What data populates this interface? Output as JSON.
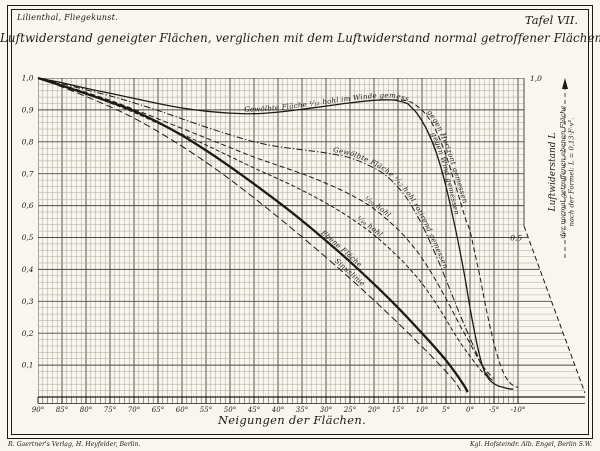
{
  "plate": {
    "work_title": "Lilienthal, Fliegekunst.",
    "plate_number": "Tafel VII.",
    "footer_left": "R. Gaertner's Verlag, H. Heyfelder, Berlin.",
    "footer_right": "Kgl. Hofsteindr. Alb. Engel, Berlin S.W."
  },
  "colors": {
    "ink": "#1c1a15",
    "paper": "#f8f6ef",
    "grid_fine": "#a49e92",
    "grid_major": "#4e4a42"
  },
  "chart_data": {
    "type": "line",
    "title": "Luftwiderstand geneigter Flächen, verglichen mit dem Luftwiderstand normal getroffener Flächen.",
    "xlabel": "Neigungen der Flächen.",
    "ylabel_right_lines": [
      "Luftwiderstand L",
      "der normal getroffenen ebenen Fläche",
      "nach der Formel: L = 0,13·F·v²."
    ],
    "xlim": [
      90,
      -10
    ],
    "ylim": [
      0,
      1
    ],
    "grid": true,
    "x_ticks": [
      {
        "v": 90,
        "label": "90°"
      },
      {
        "v": 85,
        "label": "85°"
      },
      {
        "v": 80,
        "label": "80°"
      },
      {
        "v": 75,
        "label": "75°"
      },
      {
        "v": 70,
        "label": "70°"
      },
      {
        "v": 65,
        "label": "65°"
      },
      {
        "v": 60,
        "label": "60°"
      },
      {
        "v": 55,
        "label": "55°"
      },
      {
        "v": 50,
        "label": "50°"
      },
      {
        "v": 45,
        "label": "45°"
      },
      {
        "v": 40,
        "label": "40°"
      },
      {
        "v": 35,
        "label": "35°"
      },
      {
        "v": 30,
        "label": "30°"
      },
      {
        "v": 25,
        "label": "25°"
      },
      {
        "v": 20,
        "label": "20°"
      },
      {
        "v": 15,
        "label": "15°"
      },
      {
        "v": 10,
        "label": "10°"
      },
      {
        "v": 5,
        "label": "5°"
      },
      {
        "v": 0,
        "label": "0°"
      },
      {
        "v": -5,
        "label": "-5°"
      },
      {
        "v": -10,
        "label": "-10°"
      }
    ],
    "y_ticks_left": [
      {
        "v": 1.0,
        "label": "1,0"
      },
      {
        "v": 0.9,
        "label": "0,9"
      },
      {
        "v": 0.8,
        "label": "0,8"
      },
      {
        "v": 0.7,
        "label": "0,7"
      },
      {
        "v": 0.6,
        "label": "0,6"
      },
      {
        "v": 0.5,
        "label": "0,5"
      },
      {
        "v": 0.4,
        "label": "0,4"
      },
      {
        "v": 0.3,
        "label": "0,3"
      },
      {
        "v": 0.2,
        "label": "0,2"
      },
      {
        "v": 0.1,
        "label": "0,1"
      }
    ],
    "y_ticks_right": [
      {
        "v": 1.0,
        "label": "1,0"
      },
      {
        "v": 0.5,
        "label": "0,5"
      }
    ],
    "series": [
      {
        "id": "im-winde",
        "name": "Gewölbte Fläche ¹⁄₁₂ hohl im Winde gemessen",
        "style": "solid",
        "width": 1.3,
        "label_offset": "56%",
        "points": [
          [
            90,
            1.0
          ],
          [
            85,
            0.985
          ],
          [
            80,
            0.968
          ],
          [
            75,
            0.952
          ],
          [
            70,
            0.936
          ],
          [
            65,
            0.92
          ],
          [
            60,
            0.906
          ],
          [
            55,
            0.896
          ],
          [
            50,
            0.89
          ],
          [
            45,
            0.888
          ],
          [
            40,
            0.893
          ],
          [
            35,
            0.902
          ],
          [
            30,
            0.912
          ],
          [
            25,
            0.922
          ],
          [
            20,
            0.93
          ],
          [
            16,
            0.931
          ],
          [
            13,
            0.92
          ]
        ]
      },
      {
        "id": "gegen-horizont",
        "name": "gegen Horizont gemessen",
        "style": "dashed",
        "width": 1,
        "label_offset": "11%",
        "points": [
          [
            16,
            0.932
          ],
          [
            13,
            0.928
          ],
          [
            11,
            0.912
          ],
          [
            9,
            0.882
          ],
          [
            7,
            0.832
          ],
          [
            5,
            0.758
          ],
          [
            3,
            0.662
          ],
          [
            1,
            0.562
          ],
          [
            0,
            0.52
          ],
          [
            -1,
            0.452
          ],
          [
            -2,
            0.382
          ],
          [
            -3,
            0.305
          ],
          [
            -4,
            0.232
          ],
          [
            -5,
            0.168
          ],
          [
            -6,
            0.115
          ],
          [
            -7,
            0.075
          ],
          [
            -8,
            0.05
          ],
          [
            -9,
            0.036
          ],
          [
            -10,
            0.03
          ]
        ]
      },
      {
        "id": "gegen-wind",
        "name": "gegen Wind gemessen",
        "style": "solid",
        "width": 1.3,
        "label_offset": "12%",
        "points": [
          [
            13,
            0.92
          ],
          [
            11,
            0.888
          ],
          [
            9,
            0.838
          ],
          [
            7,
            0.765
          ],
          [
            5,
            0.66
          ],
          [
            3,
            0.525
          ],
          [
            2,
            0.45
          ],
          [
            1,
            0.37
          ],
          [
            0,
            0.28
          ],
          [
            -1,
            0.2
          ],
          [
            -2,
            0.13
          ],
          [
            -3,
            0.08
          ],
          [
            -4,
            0.055
          ],
          [
            -5,
            0.042
          ],
          [
            -6,
            0.034
          ],
          [
            -7,
            0.03
          ],
          [
            -8,
            0.026
          ],
          [
            -9,
            0.024
          ]
        ]
      },
      {
        "id": "rotirend",
        "name": "Gewölbte Fläche ¹⁄₁₂ hohl rotirend gemessen",
        "style": "dashdot",
        "width": 1,
        "label_offset": "51%",
        "points": [
          [
            90,
            1.0
          ],
          [
            85,
            0.982
          ],
          [
            80,
            0.963
          ],
          [
            75,
            0.944
          ],
          [
            70,
            0.922
          ],
          [
            65,
            0.898
          ],
          [
            60,
            0.872
          ],
          [
            55,
            0.846
          ],
          [
            50,
            0.822
          ],
          [
            45,
            0.8
          ],
          [
            40,
            0.785
          ],
          [
            35,
            0.775
          ],
          [
            30,
            0.765
          ],
          [
            25,
            0.75
          ],
          [
            20,
            0.718
          ],
          [
            17,
            0.688
          ],
          [
            14,
            0.64
          ],
          [
            12,
            0.595
          ],
          [
            10,
            0.54
          ],
          [
            8,
            0.475
          ],
          [
            6,
            0.405
          ],
          [
            4,
            0.33
          ],
          [
            2,
            0.255
          ],
          [
            0,
            0.185
          ],
          [
            -1,
            0.15
          ],
          [
            -2,
            0.115
          ],
          [
            -3,
            0.085
          ],
          [
            -4,
            0.062
          ],
          [
            -5,
            0.048
          ]
        ]
      },
      {
        "id": "hohl-1-20",
        "name": "¹⁄₂₀ hohl",
        "style": "dashed",
        "width": 1,
        "label_offset": "61%",
        "points": [
          [
            90,
            1.0
          ],
          [
            85,
            0.978
          ],
          [
            80,
            0.955
          ],
          [
            75,
            0.93
          ],
          [
            70,
            0.902
          ],
          [
            65,
            0.872
          ],
          [
            60,
            0.842
          ],
          [
            55,
            0.812
          ],
          [
            50,
            0.782
          ],
          [
            45,
            0.752
          ],
          [
            40,
            0.726
          ],
          [
            35,
            0.7
          ],
          [
            30,
            0.67
          ],
          [
            25,
            0.635
          ],
          [
            20,
            0.59
          ],
          [
            15,
            0.525
          ],
          [
            12,
            0.475
          ],
          [
            10,
            0.435
          ],
          [
            8,
            0.388
          ],
          [
            6,
            0.336
          ],
          [
            4,
            0.28
          ],
          [
            2,
            0.222
          ],
          [
            0,
            0.168
          ],
          [
            -2,
            0.112
          ],
          [
            -3,
            0.09
          ],
          [
            -4,
            0.072
          ],
          [
            -5,
            0.058
          ]
        ]
      },
      {
        "id": "hohl-1-40",
        "name": "¹⁄₄₀ hohl",
        "style": "finedash",
        "width": 1,
        "label_offset": "62%",
        "points": [
          [
            90,
            1.0
          ],
          [
            85,
            0.976
          ],
          [
            80,
            0.95
          ],
          [
            75,
            0.922
          ],
          [
            70,
            0.892
          ],
          [
            65,
            0.858
          ],
          [
            60,
            0.824
          ],
          [
            55,
            0.79
          ],
          [
            50,
            0.754
          ],
          [
            45,
            0.718
          ],
          [
            40,
            0.684
          ],
          [
            35,
            0.648
          ],
          [
            30,
            0.608
          ],
          [
            25,
            0.562
          ],
          [
            20,
            0.508
          ],
          [
            15,
            0.44
          ],
          [
            12,
            0.392
          ],
          [
            10,
            0.356
          ],
          [
            8,
            0.314
          ],
          [
            6,
            0.268
          ],
          [
            4,
            0.218
          ],
          [
            2,
            0.17
          ],
          [
            0,
            0.128
          ],
          [
            -2,
            0.088
          ],
          [
            -3,
            0.072
          ],
          [
            -4,
            0.06
          ],
          [
            -5,
            0.05
          ]
        ]
      },
      {
        "id": "ebene",
        "name": "Ebene Fläche",
        "style": "solid",
        "width": 2.3,
        "label_offset": "60%",
        "label_size": 8.5,
        "points": [
          [
            90,
            1.0
          ],
          [
            85,
            0.976
          ],
          [
            80,
            0.951
          ],
          [
            75,
            0.925
          ],
          [
            70,
            0.897
          ],
          [
            65,
            0.861
          ],
          [
            60,
            0.82
          ],
          [
            55,
            0.773
          ],
          [
            50,
            0.722
          ],
          [
            45,
            0.668
          ],
          [
            40,
            0.612
          ],
          [
            35,
            0.553
          ],
          [
            30,
            0.49
          ],
          [
            25,
            0.424
          ],
          [
            20,
            0.354
          ],
          [
            15,
            0.28
          ],
          [
            10,
            0.2
          ],
          [
            7,
            0.15
          ],
          [
            5,
            0.115
          ],
          [
            3,
            0.075
          ],
          [
            1,
            0.03
          ],
          [
            0.5,
            0.015
          ]
        ]
      },
      {
        "id": "sinuslinie",
        "name": "Sinuslinie",
        "style": "longdash",
        "width": 1,
        "label_offset": "66%",
        "points": [
          [
            90,
            1.0
          ],
          [
            85,
            0.972
          ],
          [
            80,
            0.942
          ],
          [
            75,
            0.91
          ],
          [
            70,
            0.874
          ],
          [
            65,
            0.832
          ],
          [
            60,
            0.786
          ],
          [
            55,
            0.736
          ],
          [
            50,
            0.682
          ],
          [
            45,
            0.624
          ],
          [
            40,
            0.564
          ],
          [
            35,
            0.502
          ],
          [
            30,
            0.438
          ],
          [
            25,
            0.372
          ],
          [
            20,
            0.303
          ],
          [
            15,
            0.232
          ],
          [
            10,
            0.158
          ],
          [
            7,
            0.112
          ],
          [
            5,
            0.08
          ],
          [
            3,
            0.045
          ],
          [
            2,
            0.02
          ]
        ]
      }
    ]
  }
}
